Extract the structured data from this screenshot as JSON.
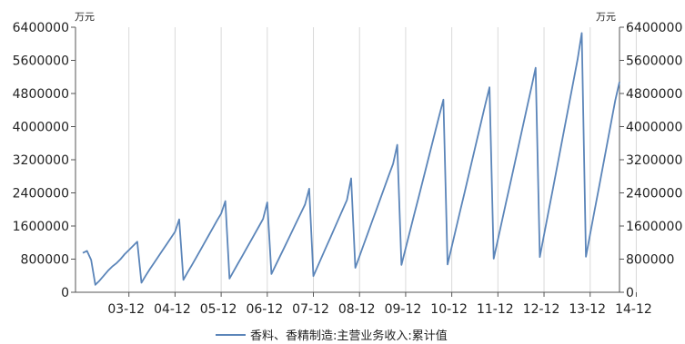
{
  "chart_data": {
    "type": "line",
    "title": "",
    "xlabel": "",
    "ylabel": "",
    "y_unit_left": "万元",
    "y_unit_right": "万元",
    "ylim": [
      0,
      6400000
    ],
    "y_ticks": [
      0,
      800000,
      1600000,
      2400000,
      3200000,
      4000000,
      4800000,
      5600000,
      6400000
    ],
    "y_tick_labels": [
      "0",
      "800000",
      "1600000",
      "2400000",
      "3200000",
      "4000000",
      "4800000",
      "5600000",
      "6400000"
    ],
    "x_tick_labels": [
      "03-12",
      "04-12",
      "05-12",
      "06-12",
      "07-12",
      "08-12",
      "09-12",
      "10-12",
      "11-12",
      "12-12",
      "13-12",
      "14-12"
    ],
    "x_tick_index": [
      11,
      22,
      33,
      44,
      55,
      66,
      77,
      88,
      99,
      110,
      121,
      132
    ],
    "grid": {
      "vertical": true,
      "horizontal": false
    },
    "legend_position": "bottom",
    "colors": {
      "series": "#5b85b9",
      "grid": "#d9d9d9",
      "axis": "#555555"
    },
    "series": [
      {
        "name": "香料、香精制造:主营业务收入:累计值",
        "values": [
          950000,
          1000000,
          780000,
          180000,
          280000,
          400000,
          520000,
          620000,
          700000,
          800000,
          920000,
          1020000,
          1120000,
          1220000,
          230000,
          400000,
          560000,
          710000,
          860000,
          1010000,
          1160000,
          1310000,
          1460000,
          1760000,
          300000,
          480000,
          650000,
          830000,
          1010000,
          1190000,
          1370000,
          1550000,
          1730000,
          1900000,
          2200000,
          330000,
          510000,
          690000,
          870000,
          1050000,
          1230000,
          1410000,
          1590000,
          1770000,
          2170000,
          440000,
          650000,
          860000,
          1070000,
          1280000,
          1490000,
          1700000,
          1910000,
          2120000,
          2500000,
          390000,
          620000,
          850000,
          1080000,
          1310000,
          1540000,
          1770000,
          2000000,
          2230000,
          2750000,
          590000,
          870000,
          1150000,
          1430000,
          1710000,
          1990000,
          2270000,
          2550000,
          2830000,
          3100000,
          3560000,
          660000,
          1060000,
          1460000,
          1860000,
          2260000,
          2660000,
          3060000,
          3460000,
          3860000,
          4260000,
          4650000,
          670000,
          1100000,
          1530000,
          1960000,
          2390000,
          2820000,
          3250000,
          3680000,
          4110000,
          4540000,
          4950000,
          810000,
          1270000,
          1730000,
          2190000,
          2650000,
          3110000,
          3570000,
          4030000,
          4490000,
          4950000,
          5420000,
          850000,
          1380000,
          1910000,
          2440000,
          2970000,
          3500000,
          4030000,
          4560000,
          5090000,
          5620000,
          6260000,
          860000,
          1400000,
          1940000,
          2480000,
          3020000,
          3560000,
          4100000,
          4640000,
          5080000
        ]
      }
    ]
  }
}
